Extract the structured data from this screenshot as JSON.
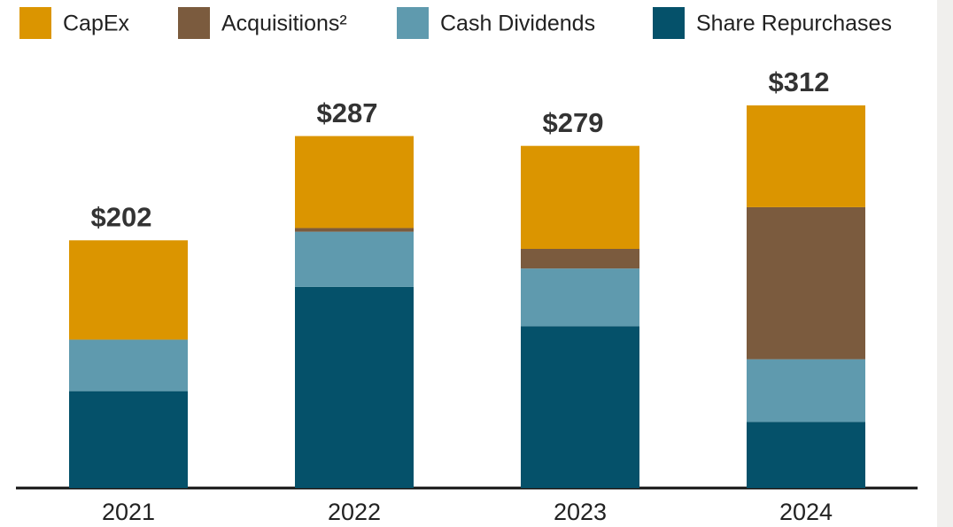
{
  "chart_data": {
    "type": "stacked-bar",
    "categories": [
      "2021",
      "2022",
      "2023",
      "2024"
    ],
    "series": [
      {
        "name": "CapEx",
        "color": "#db9500",
        "values": [
          81,
          75,
          84,
          83
        ]
      },
      {
        "name": "Acquisitions²",
        "color": "#7b5b3e",
        "values": [
          0,
          3,
          16,
          124
        ]
      },
      {
        "name": "Cash Dividends",
        "color": "#5f9aae",
        "values": [
          42,
          45,
          47,
          51
        ]
      },
      {
        "name": "Share Repurchases",
        "color": "#05516a",
        "values": [
          79,
          164,
          132,
          54
        ]
      }
    ],
    "totals": [
      202,
      287,
      279,
      312
    ],
    "total_labels": [
      "$202",
      "$287",
      "$279",
      "$312"
    ]
  }
}
